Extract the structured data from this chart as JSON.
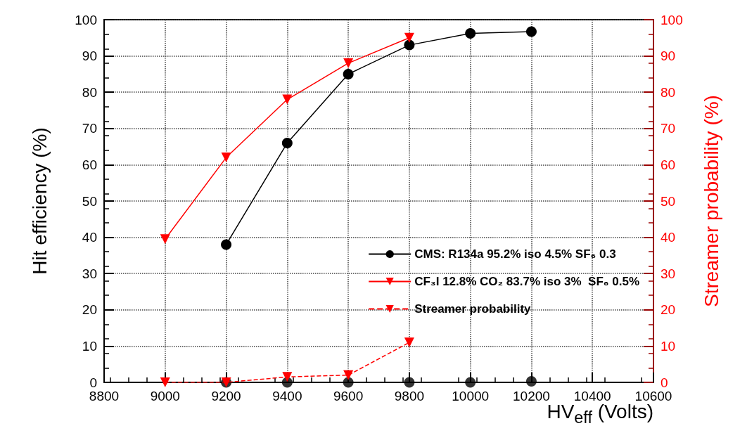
{
  "chart_data": {
    "type": "line",
    "xlabel": "HV$_{eff}$ (Volts)",
    "ylabel": "Hit efficiency (%)",
    "y2label": "Streamer probability (%)",
    "xlim": [
      8800,
      10600
    ],
    "xticks": [
      8800,
      9000,
      9200,
      9400,
      9600,
      9800,
      10000,
      10200,
      10400,
      10600
    ],
    "ylim": [
      0,
      100
    ],
    "yticks": [
      0,
      10,
      20,
      30,
      40,
      50,
      60,
      70,
      80,
      90,
      100
    ],
    "y2lim": [
      0,
      100
    ],
    "y2ticks": [
      0,
      10,
      20,
      30,
      40,
      50,
      60,
      70,
      80,
      90,
      100
    ],
    "grid": true,
    "legend": "right",
    "series": [
      {
        "name": "CMS: R134a 95.2% iso 4.5% SF₆ 0.3",
        "color": "#000000",
        "marker": "circle",
        "line_style": "solid",
        "x": [
          9200,
          9400,
          9600,
          9800,
          10000,
          10200
        ],
        "values": [
          38,
          66,
          85,
          93,
          96.2,
          96.7
        ]
      },
      {
        "name": "CF₃I 12.8% CO₂ 83.7% iso 3%  SF₆ 0.5%",
        "color": "#ff0000",
        "marker": "triangle",
        "line_style": "solid",
        "x": [
          9000,
          9200,
          9400,
          9600,
          9800
        ],
        "values": [
          39.5,
          62,
          78,
          88,
          95
        ]
      },
      {
        "name": "Streamer probability",
        "color": "#ff0000",
        "marker": "triangle",
        "line_style": "dashed",
        "x": [
          9000,
          9200,
          9400,
          9600,
          9800
        ],
        "values": [
          0,
          0,
          1.5,
          2,
          11
        ]
      },
      {
        "type": "scatter",
        "color": "#000000",
        "marker": "circle",
        "x": [
          9200,
          9400,
          9600,
          9800,
          10000,
          10200
        ],
        "values": [
          0,
          0,
          0,
          0,
          0,
          0.3
        ]
      }
    ]
  }
}
